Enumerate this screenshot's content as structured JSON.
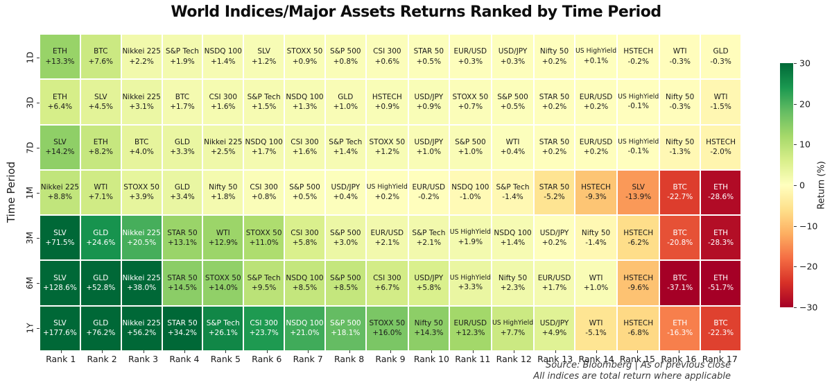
{
  "title": "World Indices/Major Assets Returns Ranked by Time Period",
  "footer": {
    "line1": "Source: Bloomberg | As of previous close",
    "line2": "All indices are total return where applicable"
  },
  "colorbar": {
    "label": "Return (%)",
    "vmin": -30,
    "vmax": 30,
    "ticks": [
      30,
      20,
      10,
      0,
      -10,
      -20,
      -30
    ],
    "anchors_low_to_high": [
      "#a50026",
      "#d73027",
      "#f46d43",
      "#fdae61",
      "#fee08b",
      "#ffffbf",
      "#d9ef8b",
      "#a6d96a",
      "#66bd63",
      "#1a9850",
      "#006837"
    ]
  },
  "chart_data": {
    "type": "heatmap",
    "title": "World Indices/Major Assets Returns Ranked by Time Period",
    "xlabel": "",
    "ylabel": "Time Period",
    "x_categories": [
      "Rank 1",
      "Rank 2",
      "Rank 3",
      "Rank 4",
      "Rank 5",
      "Rank 6",
      "Rank 7",
      "Rank 8",
      "Rank 9",
      "Rank 10",
      "Rank 11",
      "Rank 12",
      "Rank 13",
      "Rank 14",
      "Rank 15",
      "Rank 16",
      "Rank 17"
    ],
    "y_categories": [
      "1D",
      "3D",
      "7D",
      "1M",
      "3M",
      "6M",
      "1Y"
    ],
    "colorscale": {
      "name": "RdYlGn",
      "vmin": -30,
      "vmax": 30
    },
    "legend_position": "right",
    "cells": [
      [
        {
          "label": "ETH",
          "value": 13.3
        },
        {
          "label": "BTC",
          "value": 7.6
        },
        {
          "label": "Nikkei 225",
          "value": 2.2
        },
        {
          "label": "S&P Tech",
          "value": 1.9
        },
        {
          "label": "NSDQ 100",
          "value": 1.4
        },
        {
          "label": "SLV",
          "value": 1.2
        },
        {
          "label": "STOXX 50",
          "value": 0.9
        },
        {
          "label": "S&P 500",
          "value": 0.8
        },
        {
          "label": "CSI 300",
          "value": 0.6
        },
        {
          "label": "STAR 50",
          "value": 0.5
        },
        {
          "label": "EUR/USD",
          "value": 0.3
        },
        {
          "label": "USD/JPY",
          "value": 0.3
        },
        {
          "label": "Nifty 50",
          "value": 0.2
        },
        {
          "label": "US HighYield",
          "value": 0.1
        },
        {
          "label": "HSTECH",
          "value": -0.2
        },
        {
          "label": "WTI",
          "value": -0.3
        },
        {
          "label": "GLD",
          "value": -0.3
        }
      ],
      [
        {
          "label": "ETH",
          "value": 6.4
        },
        {
          "label": "SLV",
          "value": 4.5
        },
        {
          "label": "Nikkei 225",
          "value": 3.1
        },
        {
          "label": "BTC",
          "value": 1.7
        },
        {
          "label": "CSI 300",
          "value": 1.6
        },
        {
          "label": "S&P Tech",
          "value": 1.5
        },
        {
          "label": "NSDQ 100",
          "value": 1.3
        },
        {
          "label": "GLD",
          "value": 1.0
        },
        {
          "label": "HSTECH",
          "value": 0.9
        },
        {
          "label": "USD/JPY",
          "value": 0.9
        },
        {
          "label": "STOXX 50",
          "value": 0.7
        },
        {
          "label": "S&P 500",
          "value": 0.5
        },
        {
          "label": "STAR 50",
          "value": 0.2
        },
        {
          "label": "EUR/USD",
          "value": 0.2
        },
        {
          "label": "US HighYield",
          "value": -0.1
        },
        {
          "label": "Nifty 50",
          "value": -0.3
        },
        {
          "label": "WTI",
          "value": -1.5
        }
      ],
      [
        {
          "label": "SLV",
          "value": 14.2
        },
        {
          "label": "ETH",
          "value": 8.2
        },
        {
          "label": "BTC",
          "value": 4.0
        },
        {
          "label": "GLD",
          "value": 3.3
        },
        {
          "label": "Nikkei 225",
          "value": 2.5
        },
        {
          "label": "NSDQ 100",
          "value": 1.7
        },
        {
          "label": "CSI 300",
          "value": 1.6
        },
        {
          "label": "S&P Tech",
          "value": 1.4
        },
        {
          "label": "STOXX 50",
          "value": 1.2
        },
        {
          "label": "USD/JPY",
          "value": 1.0
        },
        {
          "label": "S&P 500",
          "value": 1.0
        },
        {
          "label": "WTI",
          "value": 0.4
        },
        {
          "label": "STAR 50",
          "value": 0.2
        },
        {
          "label": "EUR/USD",
          "value": 0.2
        },
        {
          "label": "US HighYield",
          "value": -0.1
        },
        {
          "label": "Nifty 50",
          "value": -1.3
        },
        {
          "label": "HSTECH",
          "value": -2.0
        }
      ],
      [
        {
          "label": "Nikkei 225",
          "value": 8.8
        },
        {
          "label": "WTI",
          "value": 7.1
        },
        {
          "label": "STOXX 50",
          "value": 3.9
        },
        {
          "label": "GLD",
          "value": 3.4
        },
        {
          "label": "Nifty 50",
          "value": 1.8
        },
        {
          "label": "CSI 300",
          "value": 0.8
        },
        {
          "label": "S&P 500",
          "value": 0.5
        },
        {
          "label": "USD/JPY",
          "value": 0.4
        },
        {
          "label": "US HighYield",
          "value": 0.2
        },
        {
          "label": "EUR/USD",
          "value": -0.2
        },
        {
          "label": "NSDQ 100",
          "value": -1.0
        },
        {
          "label": "S&P Tech",
          "value": -1.4
        },
        {
          "label": "STAR 50",
          "value": -5.2
        },
        {
          "label": "HSTECH",
          "value": -9.3
        },
        {
          "label": "SLV",
          "value": -13.9
        },
        {
          "label": "BTC",
          "value": -22.7
        },
        {
          "label": "ETH",
          "value": -28.6
        }
      ],
      [
        {
          "label": "SLV",
          "value": 71.5
        },
        {
          "label": "GLD",
          "value": 24.6
        },
        {
          "label": "Nikkei 225",
          "value": 20.5
        },
        {
          "label": "STAR 50",
          "value": 13.1
        },
        {
          "label": "WTI",
          "value": 12.9
        },
        {
          "label": "STOXX 50",
          "value": 11.0
        },
        {
          "label": "CSI 300",
          "value": 5.8
        },
        {
          "label": "S&P 500",
          "value": 3.0
        },
        {
          "label": "EUR/USD",
          "value": 2.1
        },
        {
          "label": "S&P Tech",
          "value": 2.1
        },
        {
          "label": "US HighYield",
          "value": 1.9
        },
        {
          "label": "NSDQ 100",
          "value": 1.4
        },
        {
          "label": "USD/JPY",
          "value": 0.2
        },
        {
          "label": "Nifty 50",
          "value": -1.4
        },
        {
          "label": "HSTECH",
          "value": -6.2
        },
        {
          "label": "BTC",
          "value": -20.8
        },
        {
          "label": "ETH",
          "value": -28.3
        }
      ],
      [
        {
          "label": "SLV",
          "value": 128.6
        },
        {
          "label": "GLD",
          "value": 52.8
        },
        {
          "label": "Nikkei 225",
          "value": 38.0
        },
        {
          "label": "STAR 50",
          "value": 14.5
        },
        {
          "label": "STOXX 50",
          "value": 14.0
        },
        {
          "label": "S&P Tech",
          "value": 9.5
        },
        {
          "label": "NSDQ 100",
          "value": 8.5
        },
        {
          "label": "S&P 500",
          "value": 8.5
        },
        {
          "label": "CSI 300",
          "value": 6.7
        },
        {
          "label": "USD/JPY",
          "value": 5.8
        },
        {
          "label": "US HighYield",
          "value": 3.3
        },
        {
          "label": "Nifty 50",
          "value": 2.3
        },
        {
          "label": "EUR/USD",
          "value": 1.7
        },
        {
          "label": "WTI",
          "value": 1.0
        },
        {
          "label": "HSTECH",
          "value": -9.6
        },
        {
          "label": "BTC",
          "value": -37.1
        },
        {
          "label": "ETH",
          "value": -51.7
        }
      ],
      [
        {
          "label": "SLV",
          "value": 177.6
        },
        {
          "label": "GLD",
          "value": 76.2
        },
        {
          "label": "Nikkei 225",
          "value": 56.2
        },
        {
          "label": "STAR 50",
          "value": 34.2
        },
        {
          "label": "S&P Tech",
          "value": 26.1
        },
        {
          "label": "CSI 300",
          "value": 23.7
        },
        {
          "label": "NSDQ 100",
          "value": 21.0
        },
        {
          "label": "S&P 500",
          "value": 18.1
        },
        {
          "label": "STOXX 50",
          "value": 16.0
        },
        {
          "label": "Nifty 50",
          "value": 14.3
        },
        {
          "label": "EUR/USD",
          "value": 12.3
        },
        {
          "label": "US HighYield",
          "value": 7.7
        },
        {
          "label": "USD/JPY",
          "value": 4.9
        },
        {
          "label": "WTI",
          "value": -5.1
        },
        {
          "label": "HSTECH",
          "value": -6.8
        },
        {
          "label": "ETH",
          "value": -16.3
        },
        {
          "label": "BTC",
          "value": -22.3
        }
      ]
    ]
  }
}
